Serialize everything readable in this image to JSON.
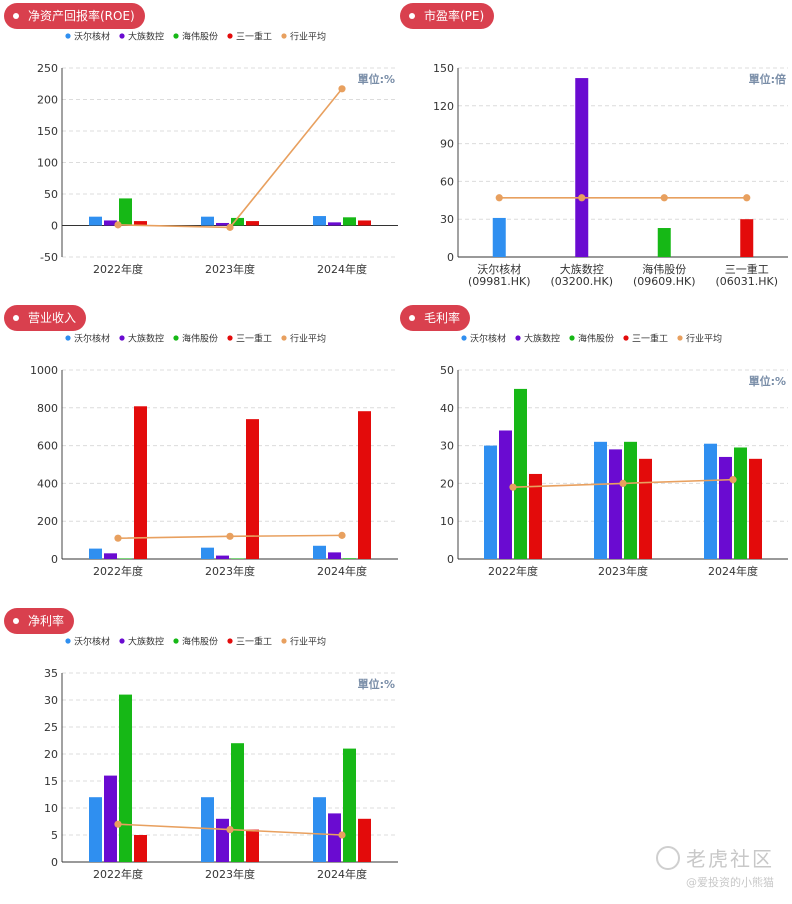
{
  "colors": {
    "badge": "#d9404e",
    "series": [
      "#2f8ff0",
      "#6a0bd1",
      "#16b816",
      "#e30b0b"
    ],
    "average": "#e8a05f"
  },
  "legend": [
    "沃尔核材",
    "大族数控",
    "海伟股份",
    "三一重工",
    "行业平均"
  ],
  "watermark": {
    "main": "老虎社区",
    "sub": "@爱投资的小熊猫"
  },
  "chart_data": [
    {
      "type": "bar",
      "title": "净资产回报率(ROE)",
      "unit": "單位:%",
      "categories": [
        "2022年度",
        "2023年度",
        "2024年度"
      ],
      "ylim": [
        -50,
        250
      ],
      "yticks": [
        -50,
        0,
        50,
        100,
        150,
        200,
        250
      ],
      "series": [
        {
          "name": "沃尔核材",
          "values": [
            14,
            14,
            15
          ]
        },
        {
          "name": "大族数控",
          "values": [
            8,
            4,
            5
          ]
        },
        {
          "name": "海伟股份",
          "values": [
            43,
            12,
            13
          ]
        },
        {
          "name": "三一重工",
          "values": [
            7,
            7,
            8
          ]
        }
      ],
      "line": {
        "name": "行业平均",
        "values": [
          1,
          -3,
          217
        ]
      }
    },
    {
      "type": "bar",
      "title": "市盈率(PE)",
      "unit": "單位:倍",
      "categories": [
        "沃尔核材\n(09981.HK)",
        "大族数控\n(03200.HK)",
        "海伟股份\n(09609.HK)",
        "三一重工\n(06031.HK)"
      ],
      "ylim": [
        0,
        150
      ],
      "yticks": [
        0,
        30,
        60,
        90,
        120,
        150
      ],
      "single": true,
      "values": [
        31,
        142,
        23,
        30
      ],
      "line": {
        "name": "行业平均",
        "values": [
          47,
          47,
          47,
          47
        ]
      }
    },
    {
      "type": "bar",
      "title": "营业收入",
      "unit": "",
      "categories": [
        "2022年度",
        "2023年度",
        "2024年度"
      ],
      "ylim": [
        0,
        1000
      ],
      "yticks": [
        0,
        200,
        400,
        600,
        800,
        1000
      ],
      "series": [
        {
          "name": "沃尔核材",
          "values": [
            55,
            60,
            70
          ]
        },
        {
          "name": "大族数控",
          "values": [
            30,
            18,
            35
          ]
        },
        {
          "name": "海伟股份",
          "values": [
            3,
            3,
            4
          ]
        },
        {
          "name": "三一重工",
          "values": [
            808,
            740,
            782
          ]
        }
      ],
      "line": {
        "name": "行业平均",
        "values": [
          110,
          120,
          125
        ]
      }
    },
    {
      "type": "bar",
      "title": "毛利率",
      "unit": "單位:%",
      "categories": [
        "2022年度",
        "2023年度",
        "2024年度"
      ],
      "ylim": [
        0,
        50
      ],
      "yticks": [
        0,
        10,
        20,
        30,
        40,
        50
      ],
      "series": [
        {
          "name": "沃尔核材",
          "values": [
            30,
            31,
            30.5
          ]
        },
        {
          "name": "大族数控",
          "values": [
            34,
            29,
            27
          ]
        },
        {
          "name": "海伟股份",
          "values": [
            45,
            31,
            29.5
          ]
        },
        {
          "name": "三一重工",
          "values": [
            22.5,
            26.5,
            26.5
          ]
        }
      ],
      "line": {
        "name": "行业平均",
        "values": [
          19,
          20,
          21
        ]
      }
    },
    {
      "type": "bar",
      "title": "净利率",
      "unit": "單位:%",
      "categories": [
        "2022年度",
        "2023年度",
        "2024年度"
      ],
      "ylim": [
        0,
        35
      ],
      "yticks": [
        0,
        5,
        10,
        15,
        20,
        25,
        30,
        35
      ],
      "series": [
        {
          "name": "沃尔核材",
          "values": [
            12,
            12,
            12
          ]
        },
        {
          "name": "大族数控",
          "values": [
            16,
            8,
            9
          ]
        },
        {
          "name": "海伟股份",
          "values": [
            31,
            22,
            21
          ]
        },
        {
          "name": "三一重工",
          "values": [
            5,
            6,
            8
          ]
        }
      ],
      "line": {
        "name": "行业平均",
        "values": [
          7,
          6,
          5
        ]
      }
    }
  ]
}
